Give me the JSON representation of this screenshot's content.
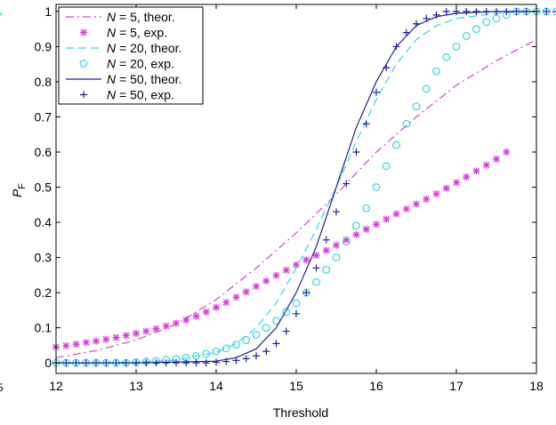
{
  "chart_data": {
    "type": "line",
    "title": "",
    "xlabel": "Threshold",
    "ylabel": "P",
    "ylabel_subscript": "F",
    "xlim": [
      12,
      18
    ],
    "ylim": [
      -0.03,
      1.02
    ],
    "x_ticks": [
      12,
      13,
      14,
      15,
      16,
      17,
      18
    ],
    "x_tick_labels": [
      "12",
      "13",
      "14",
      "15",
      "16",
      "17",
      "18"
    ],
    "y_ticks": [
      0,
      0.1,
      0.2,
      0.3,
      0.4,
      0.5,
      0.6,
      0.7,
      0.8,
      0.9,
      1
    ],
    "y_tick_labels": [
      "0",
      "0.1",
      "0.2",
      "0.3",
      "0.4",
      "0.5",
      "0.6",
      "0.7",
      "0.8",
      "0.9",
      "1"
    ],
    "grid": false,
    "legend_position": "top-left",
    "series": [
      {
        "name_prefix": "N",
        "name_suffix": " = 5, theor.",
        "kind": "line",
        "style": "dashdot",
        "color": "#d63fd6",
        "x": [
          12.0,
          12.5,
          13.0,
          13.5,
          14.0,
          14.5,
          15.0,
          15.5,
          16.0,
          16.5,
          17.0,
          17.5,
          18.0
        ],
        "y": [
          0.015,
          0.035,
          0.065,
          0.11,
          0.18,
          0.27,
          0.37,
          0.48,
          0.6,
          0.7,
          0.79,
          0.86,
          0.92
        ]
      },
      {
        "name_prefix": "N",
        "name_suffix": " = 5, exp.",
        "kind": "marker",
        "marker": "asterisk",
        "color": "#d63fd6",
        "x_start": 12.0,
        "x_step": 0.125,
        "y": [
          0.045,
          0.049,
          0.053,
          0.058,
          0.062,
          0.067,
          0.072,
          0.078,
          0.084,
          0.09,
          0.097,
          0.105,
          0.113,
          0.122,
          0.133,
          0.145,
          0.158,
          0.172,
          0.187,
          0.202,
          0.218,
          0.233,
          0.249,
          0.264,
          0.279,
          0.293,
          0.306,
          0.32,
          0.335,
          0.35,
          0.365,
          0.38,
          0.394,
          0.409,
          0.424,
          0.438,
          0.452,
          0.466,
          0.481,
          0.497,
          0.513,
          0.529,
          0.546,
          0.563,
          0.58,
          0.6
        ]
      },
      {
        "name_prefix": "N",
        "name_suffix": " = 20, theor.",
        "kind": "line",
        "style": "dashed",
        "color": "#33d6e0",
        "x": [
          12.0,
          12.5,
          13.0,
          13.5,
          14.0,
          14.25,
          14.5,
          14.75,
          15.0,
          15.25,
          15.5,
          15.75,
          16.0,
          16.25,
          16.5,
          16.75,
          17.0,
          17.5,
          18.0
        ],
        "y": [
          0.0,
          0.0,
          0.002,
          0.008,
          0.03,
          0.055,
          0.1,
          0.17,
          0.27,
          0.38,
          0.5,
          0.63,
          0.75,
          0.85,
          0.92,
          0.96,
          0.98,
          0.995,
          1.0
        ]
      },
      {
        "name_prefix": "N",
        "name_suffix": " = 20, exp.",
        "kind": "marker",
        "marker": "circle",
        "color": "#33d6e0",
        "x_start": 12.0,
        "x_step": 0.125,
        "y": [
          0.0,
          0.0,
          0.0,
          0.0,
          0.0,
          0.0,
          0.0,
          0.0,
          0.002,
          0.004,
          0.006,
          0.008,
          0.011,
          0.015,
          0.02,
          0.026,
          0.033,
          0.041,
          0.052,
          0.065,
          0.08,
          0.1,
          0.12,
          0.145,
          0.17,
          0.2,
          0.23,
          0.265,
          0.3,
          0.345,
          0.39,
          0.44,
          0.5,
          0.56,
          0.62,
          0.68,
          0.73,
          0.78,
          0.83,
          0.87,
          0.9,
          0.93,
          0.95,
          0.97,
          0.98,
          0.99,
          1.0,
          1.0,
          1.0,
          1.0,
          1.0,
          1.0,
          1.0,
          1.0,
          1.0,
          1.0,
          1.0,
          1.0,
          1.0,
          1.0,
          1.0,
          1.0,
          1.0,
          1.0,
          1.0,
          1.0,
          1.0,
          1.0,
          1.0
        ]
      },
      {
        "name_prefix": "N",
        "name_suffix": " = 50, theor.",
        "kind": "line",
        "style": "solid",
        "color": "#1f1f9e",
        "x": [
          12.0,
          13.0,
          14.0,
          14.25,
          14.5,
          14.75,
          15.0,
          15.25,
          15.5,
          15.75,
          16.0,
          16.25,
          16.5,
          16.75,
          17.0,
          17.5,
          18.0
        ],
        "y": [
          0.0,
          0.0,
          0.005,
          0.015,
          0.04,
          0.1,
          0.2,
          0.33,
          0.5,
          0.67,
          0.8,
          0.9,
          0.96,
          0.985,
          0.995,
          1.0,
          1.0
        ]
      },
      {
        "name_prefix": "N",
        "name_suffix": " = 50, exp.",
        "kind": "marker",
        "marker": "plus",
        "color": "#1f1f9e",
        "x_start": 12.0,
        "x_step": 0.125,
        "y": [
          0.0,
          0.0,
          0.0,
          0.0,
          0.0,
          0.0,
          0.0,
          0.0,
          0.0,
          0.0,
          0.0,
          0.0,
          0.0,
          0.0,
          0.0,
          0.0,
          0.002,
          0.004,
          0.007,
          0.012,
          0.02,
          0.033,
          0.055,
          0.09,
          0.14,
          0.2,
          0.27,
          0.35,
          0.43,
          0.51,
          0.6,
          0.68,
          0.77,
          0.84,
          0.9,
          0.94,
          0.965,
          0.98,
          0.99,
          1.0,
          1.0,
          1.0,
          1.0,
          1.0,
          1.0,
          1.0,
          1.0,
          1.0,
          1.0,
          1.0,
          1.0,
          1.0,
          1.0,
          1.0,
          1.0,
          1.0,
          1.0,
          1.0,
          1.0,
          1.0,
          1.0,
          1.0,
          1.0,
          1.0,
          1.0,
          1.0,
          1.0,
          1.0,
          1.0
        ]
      }
    ]
  }
}
